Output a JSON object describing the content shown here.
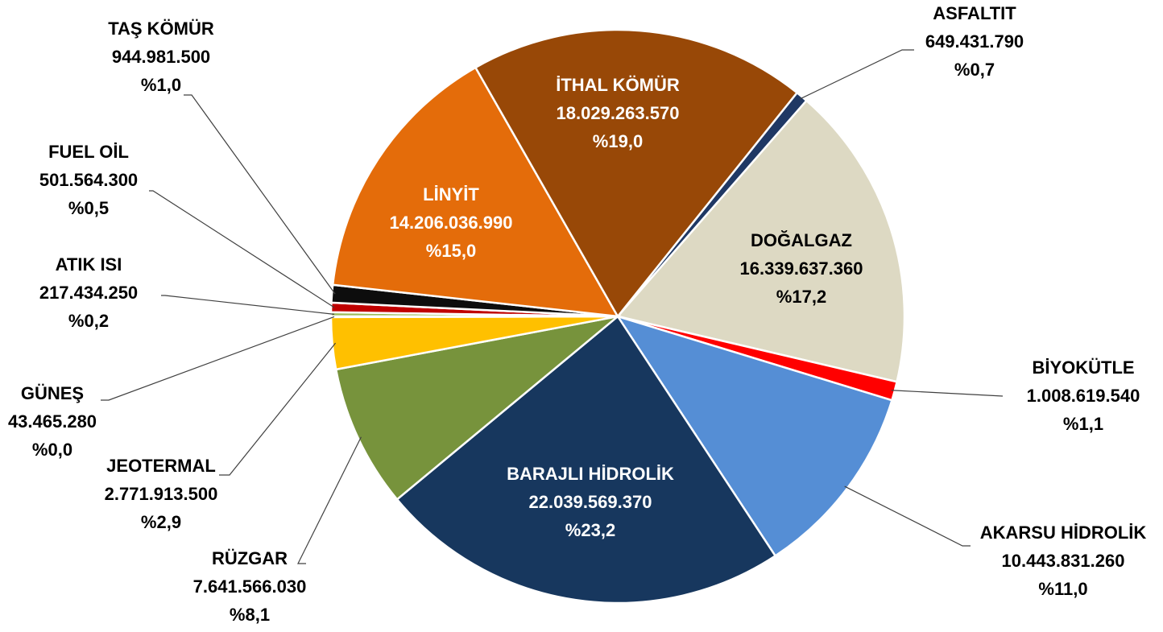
{
  "chart_data": {
    "type": "pie",
    "categories": [
      "ASFALTIT",
      "DOĞALGAZ",
      "BİYOKÜTLE",
      "AKARSU HİDROLİK",
      "BARAJLI HİDROLİK",
      "RÜZGAR",
      "JEOTERMAL",
      "GÜNEŞ",
      "ATIK ISI",
      "FUEL OİL",
      "TAŞ KÖMÜR",
      "LİNYİT",
      "İTHAL KÖMÜR"
    ],
    "values": [
      649431790,
      16339637360,
      1008619540,
      10443831260,
      22039569370,
      7641566030,
      2771913500,
      43465280,
      217434250,
      501564300,
      944981500,
      14206036990,
      18029263570
    ],
    "value_labels": [
      "649.431.790",
      "16.339.637.360",
      "1.008.619.540",
      "10.443.831.260",
      "22.039.569.370",
      "7.641.566.030",
      "2.771.913.500",
      "43.465.280",
      "217.434.250",
      "501.564.300",
      "944.981.500",
      "14.206.036.990",
      "18.029.263.570"
    ],
    "percentages": [
      0.7,
      17.2,
      1.1,
      11.0,
      23.2,
      8.1,
      2.9,
      0.0,
      0.2,
      0.5,
      1.0,
      15.0,
      19.0
    ],
    "percentage_labels": [
      "%0,7",
      "%17,2",
      "%1,1",
      "%11,0",
      "%23,2",
      "%8,1",
      "%2,9",
      "%0,0",
      "%0,2",
      "%0,5",
      "%1,0",
      "%15,0",
      "%19,0"
    ],
    "colors": [
      "#1f3864",
      "#ddd9c3",
      "#ff0000",
      "#558ed5",
      "#17375e",
      "#77933c",
      "#ffc000",
      "#4f6228",
      "#9bbb59",
      "#c00000",
      "#0d0d0d",
      "#e46c0a",
      "#984807"
    ]
  }
}
